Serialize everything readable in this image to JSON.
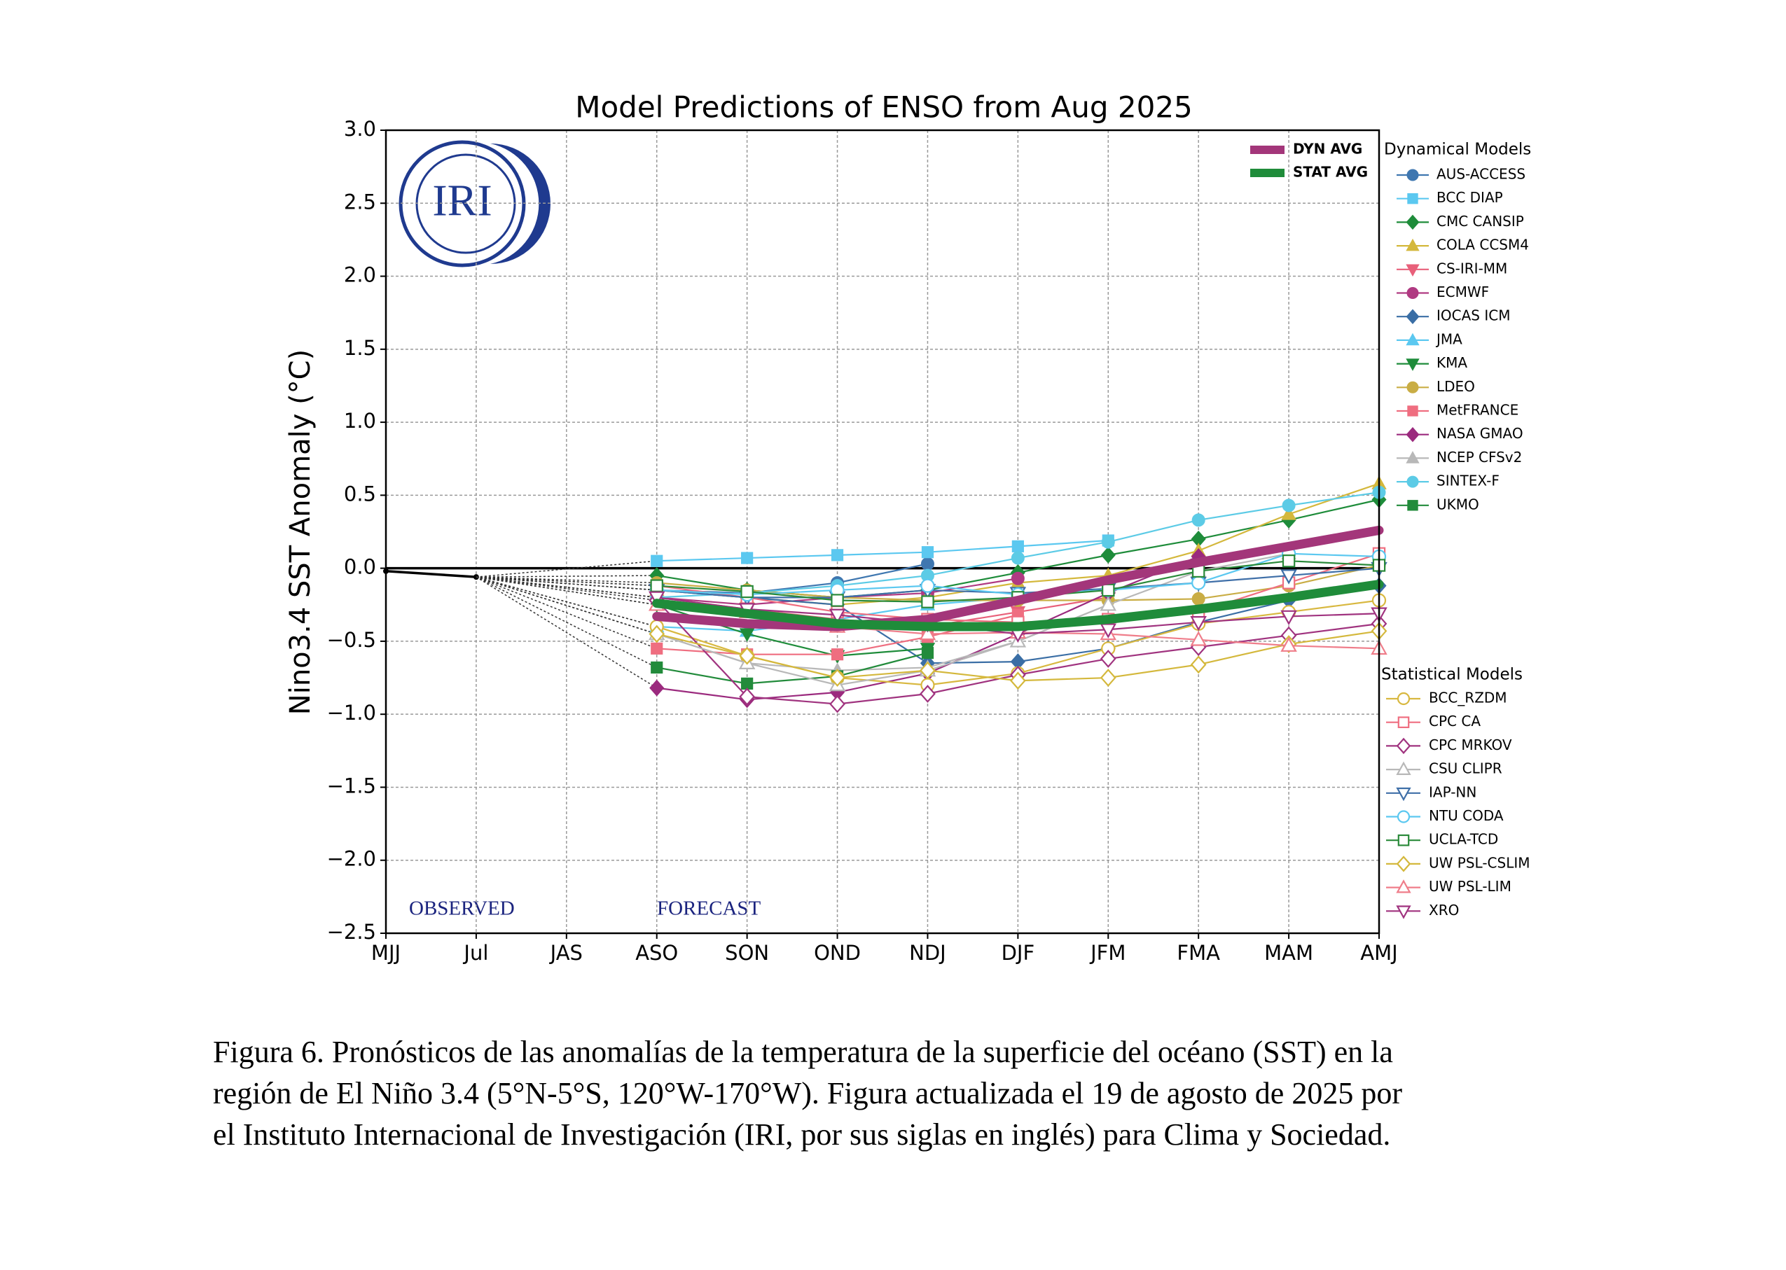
{
  "chart_data": {
    "type": "line",
    "title": "Model Predictions of ENSO from Aug 2025",
    "y_label": "Nino3.4 SST Anomaly (°C)",
    "logo_text": "IRI",
    "annotations": [
      "OBSERVED",
      "FORECAST"
    ],
    "legend_titles": [
      "Dynamical Models",
      "Statistical Models"
    ],
    "categories": [
      "MJJ",
      "Jul",
      "JAS",
      "ASO",
      "SON",
      "OND",
      "NDJ",
      "DJF",
      "JFM",
      "FMA",
      "MAM",
      "AMJ"
    ],
    "observed_values": [
      -0.02,
      -0.06,
      null,
      null,
      null,
      null,
      null,
      null,
      null,
      null,
      null,
      null
    ],
    "ylim": [
      -2.5,
      3.0
    ],
    "yticks": [
      {
        "value": 3.0,
        "label": "3.0"
      },
      {
        "value": 2.5,
        "label": "2.5"
      },
      {
        "value": 2.0,
        "label": "2.0"
      },
      {
        "value": 1.5,
        "label": "1.5"
      },
      {
        "value": 1.0,
        "label": "1.0"
      },
      {
        "value": 0.5,
        "label": "0.5"
      },
      {
        "value": 0.0,
        "label": "0.0"
      },
      {
        "value": -0.5,
        "label": "−0.5"
      },
      {
        "value": -1.0,
        "label": "−1.0"
      },
      {
        "value": -1.5,
        "label": "−1.5"
      },
      {
        "value": -2.0,
        "label": "−2.0"
      },
      {
        "value": -2.5,
        "label": "−2.5"
      }
    ],
    "grid": true,
    "series": [
      {
        "name": "DYN AVG",
        "style": "average",
        "color": "#a3367a",
        "values": [
          null,
          null,
          null,
          -0.33,
          -0.38,
          -0.4,
          -0.35,
          -0.22,
          -0.08,
          0.04,
          0.15,
          0.26
        ]
      },
      {
        "name": "STAT AVG",
        "style": "average",
        "color": "#1f8c3a",
        "values": [
          null,
          null,
          null,
          -0.24,
          -0.31,
          -0.38,
          -0.4,
          -0.4,
          -0.35,
          -0.28,
          -0.2,
          -0.11
        ]
      },
      {
        "name": "AUS-ACCESS",
        "style": "dynamical",
        "marker": "circle",
        "color": "#3f77b0",
        "values": [
          null,
          null,
          null,
          -0.15,
          -0.17,
          -0.1,
          0.03,
          null,
          null,
          null,
          null,
          null
        ]
      },
      {
        "name": "BCC DIAP",
        "style": "dynamical",
        "marker": "square",
        "color": "#5bc8f0",
        "values": [
          null,
          null,
          null,
          0.05,
          0.07,
          0.09,
          0.11,
          0.15,
          0.19,
          null,
          null,
          null
        ]
      },
      {
        "name": "CMC CANSIP",
        "style": "dynamical",
        "marker": "diamond",
        "color": "#1e8c3a",
        "values": [
          null,
          null,
          null,
          -0.05,
          -0.15,
          -0.2,
          -0.15,
          -0.03,
          0.09,
          0.2,
          0.33,
          0.47
        ]
      },
      {
        "name": "COLA CCSM4",
        "style": "dynamical",
        "marker": "triangle-up",
        "color": "#d4b83c",
        "values": [
          null,
          null,
          null,
          -0.15,
          -0.2,
          -0.25,
          -0.2,
          -0.1,
          -0.05,
          0.12,
          0.37,
          0.58
        ]
      },
      {
        "name": "CS-IRI-MM",
        "style": "dynamical",
        "marker": "triangle-down",
        "color": "#e8607a",
        "values": [
          null,
          null,
          null,
          -0.2,
          -0.28,
          -0.35,
          -0.4,
          -0.3,
          -0.2,
          null,
          null,
          null
        ]
      },
      {
        "name": "ECMWF",
        "style": "dynamical",
        "marker": "circle",
        "color": "#b03a82",
        "values": [
          null,
          null,
          null,
          -0.2,
          -0.25,
          -0.2,
          -0.17,
          -0.07,
          null,
          null,
          null,
          null
        ]
      },
      {
        "name": "IOCAS ICM",
        "style": "dynamical",
        "marker": "diamond",
        "color": "#3a6ea5",
        "values": [
          null,
          null,
          null,
          -0.15,
          -0.2,
          -0.25,
          -0.65,
          -0.64,
          -0.55,
          -0.37,
          -0.22,
          -0.12
        ]
      },
      {
        "name": "JMA",
        "style": "dynamical",
        "marker": "triangle-up",
        "color": "#5bc8f0",
        "values": [
          null,
          null,
          null,
          -0.4,
          -0.43,
          -0.35,
          -0.25,
          -0.2,
          null,
          null,
          null,
          null
        ]
      },
      {
        "name": "KMA",
        "style": "dynamical",
        "marker": "triangle-down",
        "color": "#1e8c3a",
        "values": [
          null,
          null,
          null,
          -0.25,
          -0.45,
          -0.6,
          -0.55,
          null,
          null,
          null,
          null,
          null
        ]
      },
      {
        "name": "LDEO",
        "style": "dynamical",
        "marker": "circle",
        "color": "#c9ad45",
        "values": [
          null,
          null,
          null,
          -0.1,
          -0.15,
          -0.2,
          -0.22,
          -0.22,
          -0.22,
          -0.21,
          -0.12,
          0.02
        ]
      },
      {
        "name": "MetFRANCE",
        "style": "dynamical",
        "marker": "square",
        "color": "#ef6e80",
        "values": [
          null,
          null,
          null,
          -0.55,
          -0.59,
          -0.59,
          -0.47,
          -0.32,
          null,
          null,
          null,
          null
        ]
      },
      {
        "name": "NASA GMAO",
        "style": "dynamical",
        "marker": "diamond",
        "color": "#9b2a7e",
        "values": [
          null,
          null,
          null,
          -0.82,
          -0.9,
          -0.85,
          -0.72,
          -0.45,
          -0.17,
          0.08,
          null,
          null
        ]
      },
      {
        "name": "NCEP CFSv2",
        "style": "dynamical",
        "marker": "triangle-up",
        "color": "#b8b8b8",
        "values": [
          null,
          null,
          null,
          -0.45,
          -0.65,
          -0.7,
          -0.68,
          -0.5,
          -0.25,
          -0.02,
          0.1,
          null
        ]
      },
      {
        "name": "SINTEX-F",
        "style": "dynamical",
        "marker": "circle",
        "color": "#5ccbe6",
        "values": [
          null,
          null,
          null,
          -0.2,
          -0.17,
          -0.12,
          -0.05,
          0.07,
          0.18,
          0.33,
          0.43,
          0.52
        ]
      },
      {
        "name": "UKMO",
        "style": "dynamical",
        "marker": "square",
        "color": "#228b3b",
        "values": [
          null,
          null,
          null,
          -0.68,
          -0.79,
          -0.74,
          -0.58,
          null,
          null,
          null,
          null,
          null
        ]
      },
      {
        "name": "BCC_RZDM",
        "style": "statistical",
        "marker": "circle",
        "color": "#d8b840",
        "values": [
          null,
          null,
          null,
          -0.4,
          -0.6,
          -0.75,
          -0.8,
          -0.72,
          -0.55,
          -0.38,
          -0.3,
          -0.22
        ]
      },
      {
        "name": "CPC CA",
        "style": "statistical",
        "marker": "square",
        "color": "#ef6e80",
        "values": [
          null,
          null,
          null,
          -0.12,
          -0.2,
          -0.3,
          -0.35,
          -0.37,
          -0.35,
          -0.3,
          -0.1,
          0.1
        ]
      },
      {
        "name": "CPC MRKOV",
        "style": "statistical",
        "marker": "diamond",
        "color": "#a0337f",
        "values": [
          null,
          null,
          null,
          -0.22,
          -0.88,
          -0.93,
          -0.86,
          -0.73,
          -0.62,
          -0.54,
          -0.46,
          -0.38
        ]
      },
      {
        "name": "CSU CLIPR",
        "style": "statistical",
        "marker": "triangle-up",
        "color": "#b8b8b8",
        "values": [
          null,
          null,
          null,
          -0.45,
          -0.65,
          -0.8,
          -0.7,
          -0.5,
          -0.25,
          null,
          null,
          null
        ]
      },
      {
        "name": "IAP-NN",
        "style": "statistical",
        "marker": "triangle-down",
        "color": "#3f6fa8",
        "values": [
          null,
          null,
          null,
          -0.15,
          -0.2,
          -0.2,
          -0.15,
          -0.17,
          -0.14,
          -0.1,
          -0.05,
          0.0
        ]
      },
      {
        "name": "NTU CODA",
        "style": "statistical",
        "marker": "circle",
        "color": "#5bc8f0",
        "values": [
          null,
          null,
          null,
          -0.15,
          -0.18,
          -0.15,
          -0.12,
          -0.18,
          -0.15,
          -0.1,
          0.1,
          0.08
        ]
      },
      {
        "name": "UCLA-TCD",
        "style": "statistical",
        "marker": "square",
        "color": "#2a8a3a",
        "values": [
          null,
          null,
          null,
          -0.12,
          -0.16,
          -0.22,
          -0.23,
          -0.2,
          -0.15,
          -0.02,
          0.05,
          0.02
        ]
      },
      {
        "name": "UW PSL-CSLIM",
        "style": "statistical",
        "marker": "diamond",
        "color": "#d4b83c",
        "values": [
          null,
          null,
          null,
          -0.45,
          -0.6,
          -0.75,
          -0.7,
          -0.77,
          -0.75,
          -0.66,
          -0.52,
          -0.43
        ]
      },
      {
        "name": "UW PSL-LIM",
        "style": "statistical",
        "marker": "triangle-up",
        "color": "#ef7d8a",
        "values": [
          null,
          null,
          null,
          -0.25,
          -0.3,
          -0.4,
          -0.45,
          -0.44,
          -0.45,
          -0.49,
          -0.53,
          -0.55
        ]
      },
      {
        "name": "XRO",
        "style": "statistical",
        "marker": "triangle-down",
        "color": "#a0337f",
        "values": [
          null,
          null,
          null,
          -0.2,
          -0.28,
          -0.32,
          -0.38,
          -0.45,
          -0.42,
          -0.37,
          -0.33,
          -0.31
        ]
      }
    ],
    "caption": [
      "Figura 6. Pronósticos de las anomalías de la temperatura de la superficie del océano (SST) en la",
      "región de El Niño 3.4 (5°N-5°S, 120°W-170°W). Figura actualizada el 19 de agosto de 2025 por",
      "el Instituto Internacional de Investigación (IRI, por sus siglas en inglés) para Clima y Sociedad."
    ]
  }
}
